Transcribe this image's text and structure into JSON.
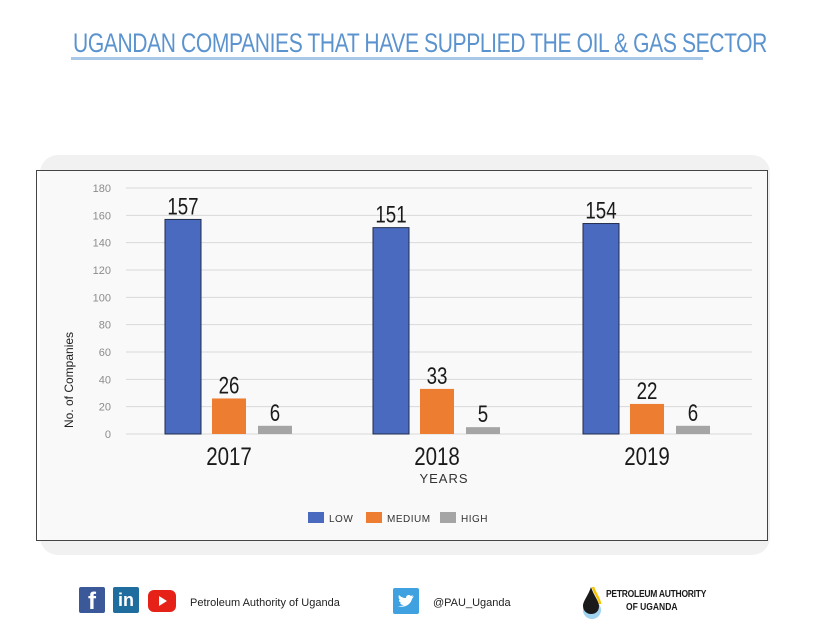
{
  "header": {
    "title": "UGANDAN COMPANIES THAT HAVE SUPPLIED THE OIL & GAS SECTOR"
  },
  "chart_data": {
    "type": "bar",
    "title": "UGANDAN COMPANIES THAT HAVE SUPPLIED THE OIL & GAS SECTOR",
    "xlabel": "YEARS",
    "ylabel": "No. of Companies",
    "categories": [
      "2017",
      "2018",
      "2019"
    ],
    "series": [
      {
        "name": "LOW",
        "color": "#4a6abf",
        "values": [
          157,
          151,
          154
        ]
      },
      {
        "name": "MEDIUM",
        "color": "#ed7d31",
        "values": [
          26,
          33,
          22
        ]
      },
      {
        "name": "HIGH",
        "color": "#a5a5a5",
        "values": [
          6,
          5,
          6
        ]
      }
    ],
    "ylim": [
      0,
      180
    ],
    "yticks": [
      0,
      20,
      40,
      60,
      80,
      100,
      120,
      140,
      160,
      180
    ],
    "grid": true,
    "legend_position": "bottom-center"
  },
  "footer": {
    "facebook_icon": "facebook-icon",
    "linkedin_icon": "linkedin-icon",
    "youtube_icon": "youtube-icon",
    "organization_name": "Petroleum Authority of Uganda",
    "twitter_icon": "twitter-icon",
    "twitter_handle": "@PAU_Uganda",
    "logo_line1": "PETROLEUM AUTHORITY",
    "logo_line2": "OF UGANDA",
    "brand_colors": {
      "facebook": "#3b5998",
      "linkedin": "#1f6d9f",
      "youtube": "#e62117",
      "twitter": "#3fa1df"
    }
  }
}
